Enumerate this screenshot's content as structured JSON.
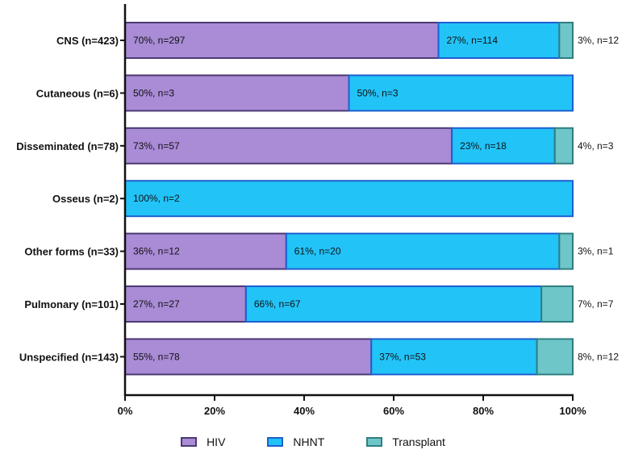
{
  "chart_data": {
    "type": "bar",
    "orientation": "horizontal",
    "stacked": true,
    "categories": [
      "CNS (n=423)",
      "Cutaneous (n=6)",
      "Disseminated (n=78)",
      "Osseus (n=2)",
      "Other forms (n=33)",
      "Pulmonary (n=101)",
      "Unspecified (n=143)"
    ],
    "series": [
      {
        "name": "HIV",
        "color": "#a98bd6",
        "border": "#4b3a72",
        "values": [
          70,
          50,
          73,
          0,
          36,
          27,
          55
        ],
        "labels": [
          "70%, n=297",
          "50%, n=3",
          "73%, n=57",
          "",
          "36%, n=12",
          "27%, n=27",
          "55%, n=78"
        ]
      },
      {
        "name": "NHNT",
        "color": "#22c3f7",
        "border": "#1e5fd0",
        "values": [
          27,
          50,
          23,
          100,
          61,
          66,
          37
        ],
        "labels": [
          "27%, n=114",
          "50%, n=3",
          "23%, n=18",
          "100%, n=2",
          "61%, n=20",
          "66%, n=67",
          "37%, n=53"
        ]
      },
      {
        "name": "Transplant",
        "color": "#6fc6c9",
        "border": "#2f7f80",
        "values": [
          3,
          0,
          4,
          0,
          3,
          7,
          8
        ],
        "labels": [
          "3%, n=12",
          "",
          "4%, n=3",
          "",
          "3%, n=1",
          "7%, n=7",
          "8%, n=12"
        ]
      }
    ],
    "x_ticks": [
      "0%",
      "20%",
      "40%",
      "60%",
      "80%",
      "100%"
    ],
    "xlim": [
      0,
      100
    ],
    "xlabel": "",
    "ylabel": "",
    "title": "",
    "grid": false,
    "legend_position": "bottom"
  }
}
